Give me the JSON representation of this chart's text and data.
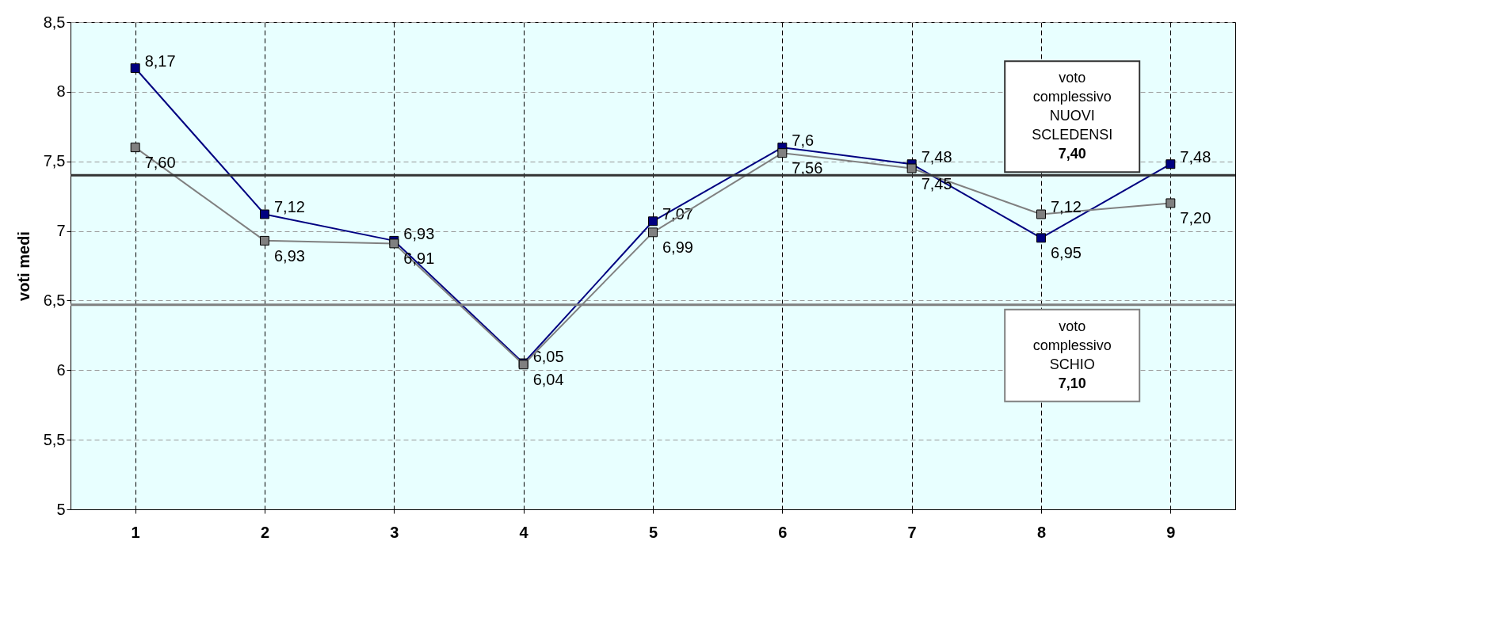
{
  "chart_data": {
    "type": "line",
    "ylabel": "voti medi",
    "categories": [
      "1",
      "2",
      "3",
      "4",
      "5",
      "6",
      "7",
      "8",
      "9"
    ],
    "ylim": [
      5,
      8.5
    ],
    "yticks": [
      {
        "value": 5,
        "label": "5"
      },
      {
        "value": 5.5,
        "label": "5,5"
      },
      {
        "value": 6,
        "label": "6"
      },
      {
        "value": 6.5,
        "label": "6,5"
      },
      {
        "value": 7,
        "label": "7"
      },
      {
        "value": 7.5,
        "label": "7,5"
      },
      {
        "value": 8,
        "label": "8"
      },
      {
        "value": 8.5,
        "label": "8,5"
      }
    ],
    "grid": true,
    "marker": "square",
    "line_style": "solid",
    "series": [
      {
        "color": "#000080",
        "values": [
          8.17,
          7.12,
          6.93,
          6.05,
          7.07,
          7.6,
          7.48,
          6.95,
          7.48
        ],
        "value_labels": [
          "8,17",
          "7,12",
          "6,93",
          "6,05",
          "7,07",
          "7,6",
          "7,48",
          "6,95",
          "7,48"
        ]
      },
      {
        "color": "#808080",
        "values": [
          7.6,
          6.93,
          6.91,
          6.04,
          6.99,
          7.56,
          7.45,
          7.12,
          7.2
        ],
        "value_labels": [
          "7,60",
          "6,93",
          "6,91",
          "6,04",
          "6,99",
          "7,56",
          "7,45",
          "7,12",
          "7,20"
        ]
      }
    ],
    "ref_lines": [
      {
        "axis": "y",
        "value": 7.4,
        "label": "voto\ncomplessivo\nNUOVI\nSCLEDENSI\n7,40",
        "color": "#333333"
      },
      {
        "axis": "y",
        "value": 6.47,
        "label": "voto\ncomplessivo\nSCHIO\n7,10",
        "color": "#808080"
      }
    ]
  }
}
